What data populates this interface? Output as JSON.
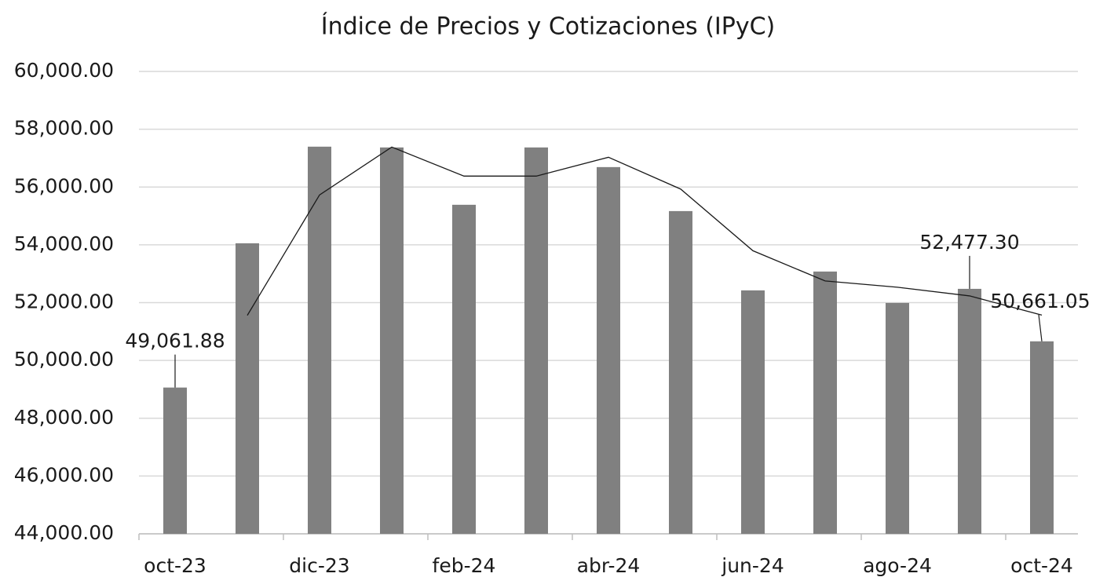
{
  "chart_data": {
    "type": "bar",
    "title": "Índice de Precios y Cotizaciones (IPyC)",
    "categories": [
      "oct-23",
      null,
      "dic-23",
      null,
      "feb-24",
      null,
      "abr-24",
      null,
      "jun-24",
      null,
      "ago-24",
      null,
      "oct-24"
    ],
    "series": [
      {
        "type": "bar",
        "color": "#808080",
        "values": [
          49061.88,
          54054,
          57397,
          57370,
          55386,
          57370,
          56690,
          55168,
          52424,
          53076,
          51989,
          52477.3,
          50661.05
        ],
        "value_labels": [
          "49,061.88",
          null,
          null,
          null,
          null,
          null,
          null,
          null,
          null,
          null,
          null,
          "52,477.30",
          "50,661.05"
        ]
      },
      {
        "type": "line",
        "color": "#1a1a1a",
        "values": [
          null,
          51558,
          55726,
          57384,
          56378,
          56378,
          57030,
          55929,
          53796,
          52750,
          52533,
          52233,
          51569
        ]
      }
    ],
    "ylim": [
      44000,
      60000
    ],
    "yticks": [
      {
        "value": 44000,
        "label": "44,000.00"
      },
      {
        "value": 46000,
        "label": "46,000.00"
      },
      {
        "value": 48000,
        "label": "48,000.00"
      },
      {
        "value": 50000,
        "label": "50,000.00"
      },
      {
        "value": 52000,
        "label": "52,000.00"
      },
      {
        "value": 54000,
        "label": "54,000.00"
      },
      {
        "value": 56000,
        "label": "56,000.00"
      },
      {
        "value": 58000,
        "label": "58,000.00"
      },
      {
        "value": 60000,
        "label": "60,000.00"
      }
    ],
    "grid": true
  }
}
